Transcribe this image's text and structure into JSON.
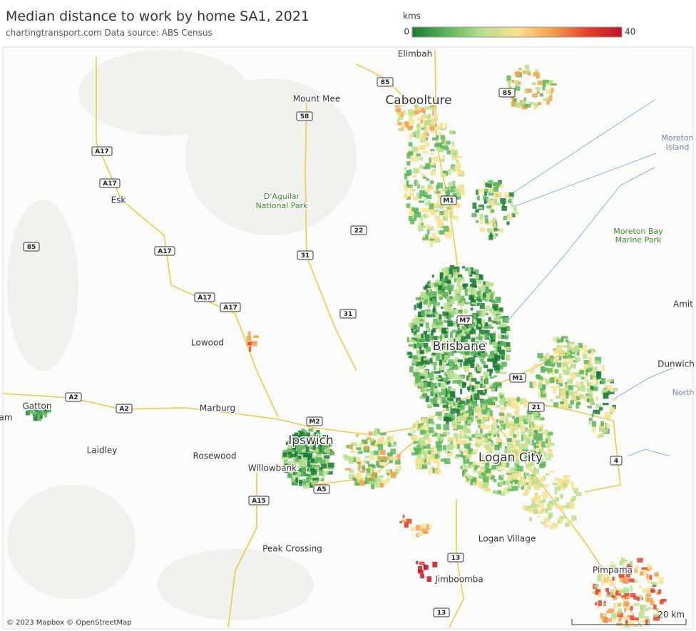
{
  "header": {
    "title": "Median distance to work by home SA1, 2021",
    "subtitle": "chartingtransport.com  Data source: ABS Census"
  },
  "legend": {
    "title": "kms",
    "min": 0,
    "max": 40,
    "colors": [
      "#1a7a37",
      "#5db55c",
      "#b9df8d",
      "#f7e08f",
      "#f5a14e",
      "#e4412f",
      "#c4102a"
    ]
  },
  "places": [
    {
      "label": "Elimbah",
      "style": "normal"
    },
    {
      "label": "Caboolture",
      "style": "big"
    },
    {
      "label": "Mount Mee",
      "style": "normal"
    },
    {
      "label": "D'Aguilar",
      "style": "park"
    },
    {
      "label": "National Park",
      "style": "park"
    },
    {
      "label": "Moreton",
      "style": "water"
    },
    {
      "label": "Island",
      "style": "water"
    },
    {
      "label": "Moreton Bay",
      "style": "park"
    },
    {
      "label": "Marine Park",
      "style": "park"
    },
    {
      "label": "Esk",
      "style": "normal"
    },
    {
      "label": "Amit",
      "style": "normal"
    },
    {
      "label": "Lowood",
      "style": "normal"
    },
    {
      "label": "Brisbane",
      "style": "big"
    },
    {
      "label": "Dunwich",
      "style": "normal"
    },
    {
      "label": "North",
      "style": "water"
    },
    {
      "label": "Gatton",
      "style": "normal"
    },
    {
      "label": "am",
      "style": "normal"
    },
    {
      "label": "Marburg",
      "style": "normal"
    },
    {
      "label": "Ipswich",
      "style": "big"
    },
    {
      "label": "Laidley",
      "style": "normal"
    },
    {
      "label": "Rosewood",
      "style": "normal"
    },
    {
      "label": "Willowbank",
      "style": "normal"
    },
    {
      "label": "Logan City",
      "style": "big"
    },
    {
      "label": "Logan Village",
      "style": "normal"
    },
    {
      "label": "Peak Crossing",
      "style": "normal"
    },
    {
      "label": "Jimboomba",
      "style": "normal"
    },
    {
      "label": "Pimpama",
      "style": "normal"
    }
  ],
  "roads": [
    "85",
    "58",
    "85",
    "A17",
    "A17",
    "M1",
    "22",
    "85",
    "A17",
    "31",
    "A17",
    "A17",
    "31",
    "M7",
    "M1",
    "A2",
    "A2",
    "21",
    "M2",
    "4",
    "A5",
    "A15",
    "13",
    "13"
  ],
  "attribution": "© 2023 Mapbox © OpenStreetMap",
  "scale": "20 km"
}
